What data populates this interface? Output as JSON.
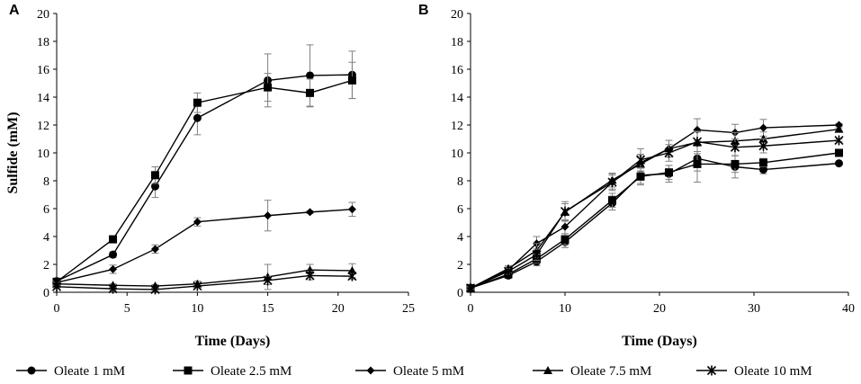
{
  "chart_data": [
    {
      "type": "line",
      "panel_label": "A",
      "title": "",
      "xlabel": "Time (Days)",
      "ylabel": "Sulfide (mM)",
      "xlim": [
        0,
        25
      ],
      "ylim": [
        0,
        20
      ],
      "xticks": [
        "0",
        "5",
        "10",
        "15",
        "20",
        "25"
      ],
      "yticks": [
        "0",
        "2",
        "4",
        "6",
        "8",
        "10",
        "12",
        "14",
        "16",
        "18",
        "20"
      ],
      "grid": false,
      "series": [
        {
          "name": "Oleate 1 mM",
          "marker": "circle",
          "x": [
            0,
            4,
            7,
            10,
            15,
            18,
            21
          ],
          "y": [
            0.8,
            2.7,
            7.6,
            12.5,
            15.2,
            15.55,
            15.6
          ],
          "err": [
            0.1,
            0.2,
            0.8,
            1.2,
            1.9,
            2.2,
            1.7
          ]
        },
        {
          "name": "Oleate 2.5 mM",
          "marker": "square",
          "x": [
            0,
            4,
            7,
            10,
            15,
            18,
            21
          ],
          "y": [
            0.75,
            3.8,
            8.4,
            13.6,
            14.7,
            14.3,
            15.2
          ],
          "err": [
            0.1,
            0.2,
            0.6,
            0.7,
            1.0,
            1.0,
            1.3
          ]
        },
        {
          "name": "Oleate 5 mM",
          "marker": "diamond",
          "x": [
            0,
            4,
            7,
            10,
            15,
            18,
            21
          ],
          "y": [
            0.7,
            1.65,
            3.1,
            5.05,
            5.5,
            5.75,
            5.95
          ],
          "err": [
            0.1,
            0.3,
            0.3,
            0.3,
            1.1,
            0.1,
            0.5
          ]
        },
        {
          "name": "Oleate 7.5 mM",
          "marker": "triangle",
          "x": [
            0,
            4,
            7,
            10,
            15,
            18,
            21
          ],
          "y": [
            0.6,
            0.5,
            0.45,
            0.6,
            1.1,
            1.6,
            1.55
          ],
          "err": [
            0.1,
            0.1,
            0.1,
            0.2,
            0.9,
            0.4,
            0.5
          ]
        },
        {
          "name": "Oleate 10 mM",
          "marker": "x",
          "x": [
            0,
            4,
            7,
            10,
            15,
            18,
            21
          ],
          "y": [
            0.4,
            0.25,
            0.2,
            0.45,
            0.85,
            1.2,
            1.15
          ],
          "err": [
            0.1,
            0.1,
            0.1,
            0.1,
            0.3,
            0.3,
            0.2
          ]
        }
      ]
    },
    {
      "type": "line",
      "panel_label": "B",
      "title": "",
      "xlabel": "Time (Days)",
      "ylabel": "",
      "xlim": [
        0,
        40
      ],
      "ylim": [
        0,
        20
      ],
      "xticks": [
        "0",
        "10",
        "20",
        "30",
        "40"
      ],
      "yticks": [
        "0",
        "2",
        "4",
        "6",
        "8",
        "10",
        "12",
        "14",
        "16",
        "18",
        "20"
      ],
      "grid": false,
      "series": [
        {
          "name": "Oleate 1 mM",
          "marker": "circle",
          "x": [
            0,
            4,
            7,
            10,
            15,
            18,
            21,
            24,
            28,
            31,
            39
          ],
          "y": [
            0.3,
            1.2,
            2.2,
            3.6,
            6.4,
            8.4,
            8.5,
            9.6,
            9.0,
            8.8,
            9.25
          ],
          "err": [
            0.1,
            0.2,
            0.3,
            0.4,
            0.5,
            0.6,
            0.6,
            0.9,
            0.8,
            0.3,
            0.1
          ]
        },
        {
          "name": "Oleate 2.5 mM",
          "marker": "square",
          "x": [
            0,
            4,
            7,
            10,
            15,
            18,
            21,
            24,
            28,
            31,
            39
          ],
          "y": [
            0.3,
            1.3,
            2.4,
            3.8,
            6.6,
            8.3,
            8.6,
            9.2,
            9.2,
            9.3,
            10.0
          ],
          "err": [
            0.1,
            0.2,
            0.3,
            0.4,
            0.5,
            0.6,
            0.5,
            1.3,
            0.6,
            0.3,
            0.1
          ]
        },
        {
          "name": "Oleate 5 mM",
          "marker": "diamond",
          "x": [
            0,
            4,
            7,
            10,
            15,
            18,
            21,
            24,
            28,
            31,
            39
          ],
          "y": [
            0.3,
            1.6,
            3.5,
            4.7,
            7.9,
            9.3,
            10.3,
            11.65,
            11.45,
            11.8,
            12.0
          ],
          "err": [
            0.1,
            0.2,
            0.5,
            0.5,
            0.5,
            0.6,
            0.6,
            0.8,
            0.6,
            0.6,
            0.1
          ]
        },
        {
          "name": "Oleate 7.5 mM",
          "marker": "triangle",
          "x": [
            0,
            4,
            7,
            10,
            15,
            18,
            21,
            24,
            28,
            31,
            39
          ],
          "y": [
            0.3,
            1.7,
            3.0,
            5.75,
            8.05,
            9.2,
            10.3,
            10.75,
            10.85,
            11.0,
            11.7
          ],
          "err": [
            0.1,
            0.2,
            0.5,
            0.6,
            0.5,
            0.6,
            0.6,
            0.8,
            0.6,
            0.5,
            0.1
          ]
        },
        {
          "name": "Oleate 10 mM",
          "marker": "x",
          "x": [
            0,
            4,
            7,
            10,
            15,
            18,
            21,
            24,
            28,
            31,
            39
          ],
          "y": [
            0.3,
            1.5,
            2.7,
            5.8,
            7.9,
            9.5,
            10.0,
            10.8,
            10.4,
            10.5,
            10.9
          ],
          "err": [
            0.1,
            0.2,
            0.4,
            0.7,
            0.6,
            0.8,
            0.6,
            0.7,
            0.6,
            0.5,
            0.1
          ]
        }
      ]
    }
  ],
  "legend": {
    "position": "bottom",
    "entries": [
      {
        "label": "Oleate 1 mM",
        "marker": "circle"
      },
      {
        "label": "Oleate 2.5 mM",
        "marker": "square"
      },
      {
        "label": "Oleate 5 mM",
        "marker": "diamond"
      },
      {
        "label": "Oleate 7.5 mM",
        "marker": "triangle"
      },
      {
        "label": "Oleate 10 mM",
        "marker": "x"
      }
    ]
  },
  "colors": {
    "line": "#000000",
    "errorbar": "#808080",
    "axis": "#000000"
  }
}
